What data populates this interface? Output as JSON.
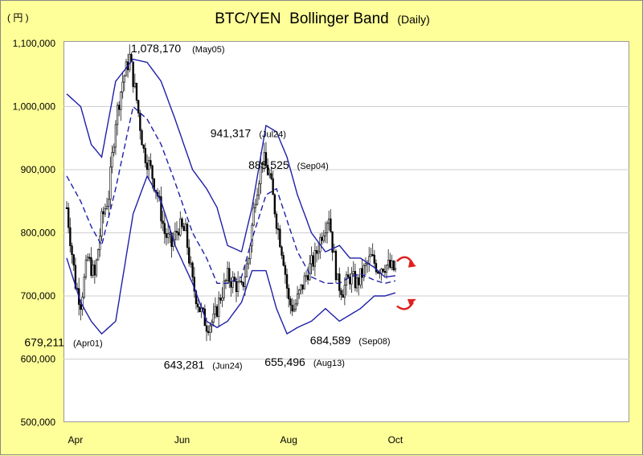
{
  "chart_data": {
    "type": "candlestick",
    "title": "BTC/YEN",
    "title_main": "Bollinger Band",
    "title_sub": "(Daily)",
    "unit_label": "( 円 )",
    "ylim": [
      500000,
      1100000
    ],
    "yticks": [
      {
        "value": 500000,
        "label": "500,000"
      },
      {
        "value": 600000,
        "label": "600,000"
      },
      {
        "value": 700000,
        "label": "700,000"
      },
      {
        "value": 800000,
        "label": "800,000"
      },
      {
        "value": 900000,
        "label": "900,000"
      },
      {
        "value": 1000000,
        "label": "1,000,000"
      },
      {
        "value": 1100000,
        "label": "1,100,000"
      }
    ],
    "day_range": [
      0,
      240
    ],
    "xticks": [
      {
        "day": 5,
        "label": "Apr"
      },
      {
        "day": 66,
        "label": "Jun"
      },
      {
        "day": 127,
        "label": "Aug"
      },
      {
        "day": 188,
        "label": "Oct"
      }
    ],
    "colors": {
      "band": "#1f1fa8",
      "up": "#ffffff",
      "down": "#000000",
      "grid": "#cfcfcf",
      "arrow": "#e02020"
    },
    "annotations": [
      {
        "day": 8,
        "value": 679211,
        "label": "679,211",
        "date": "(Apr01)"
      },
      {
        "day": 34,
        "value": 1078170,
        "label": "1,078,170",
        "date": "(May05)"
      },
      {
        "day": 107,
        "value": 941317,
        "label": "941,317",
        "date": "(Jul24)"
      },
      {
        "day": 84,
        "value": 643281,
        "label": "643,281",
        "date": "(Jun24)"
      },
      {
        "day": 127,
        "value": 655496,
        "label": "655,496",
        "date": "(Aug13)"
      },
      {
        "day": 149,
        "value": 883525,
        "label": "883,525",
        "date": "(Sep04)"
      },
      {
        "day": 153,
        "value": 684589,
        "label": "684,589",
        "date": "(Sep08)"
      }
    ],
    "band_keys": [
      [
        0,
        1020000,
        890000,
        760000
      ],
      [
        8,
        1000000,
        850000,
        690000
      ],
      [
        14,
        940000,
        810000,
        660000
      ],
      [
        20,
        920000,
        780000,
        640000
      ],
      [
        28,
        1040000,
        870000,
        660000
      ],
      [
        38,
        1075000,
        1000000,
        830000
      ],
      [
        46,
        1070000,
        980000,
        890000
      ],
      [
        54,
        1040000,
        940000,
        850000
      ],
      [
        62,
        980000,
        880000,
        780000
      ],
      [
        72,
        900000,
        800000,
        720000
      ],
      [
        80,
        870000,
        760000,
        660000
      ],
      [
        86,
        840000,
        720000,
        650000
      ],
      [
        92,
        780000,
        720000,
        660000
      ],
      [
        100,
        770000,
        730000,
        690000
      ],
      [
        106,
        840000,
        790000,
        740000
      ],
      [
        114,
        970000,
        860000,
        740000
      ],
      [
        120,
        960000,
        870000,
        680000
      ],
      [
        126,
        920000,
        820000,
        640000
      ],
      [
        132,
        860000,
        770000,
        650000
      ],
      [
        140,
        800000,
        730000,
        660000
      ],
      [
        148,
        770000,
        720000,
        680000
      ],
      [
        156,
        780000,
        720000,
        660000
      ],
      [
        162,
        760000,
        730000,
        670000
      ],
      [
        168,
        760000,
        735000,
        680000
      ],
      [
        176,
        745000,
        725000,
        700000
      ],
      [
        182,
        730000,
        720000,
        700000
      ],
      [
        188,
        732000,
        724000,
        705000
      ]
    ],
    "price_keys": [
      [
        0,
        840000
      ],
      [
        5,
        720000
      ],
      [
        8,
        690000
      ],
      [
        12,
        760000
      ],
      [
        16,
        730000
      ],
      [
        20,
        820000
      ],
      [
        24,
        860000
      ],
      [
        28,
        980000
      ],
      [
        32,
        1040000
      ],
      [
        36,
        1078000
      ],
      [
        40,
        1010000
      ],
      [
        44,
        930000
      ],
      [
        48,
        900000
      ],
      [
        52,
        860000
      ],
      [
        56,
        800000
      ],
      [
        60,
        780000
      ],
      [
        64,
        810000
      ],
      [
        68,
        800000
      ],
      [
        72,
        720000
      ],
      [
        76,
        680000
      ],
      [
        80,
        655000
      ],
      [
        84,
        660000
      ],
      [
        88,
        700000
      ],
      [
        92,
        730000
      ],
      [
        96,
        720000
      ],
      [
        100,
        710000
      ],
      [
        104,
        760000
      ],
      [
        108,
        860000
      ],
      [
        112,
        920000
      ],
      [
        116,
        890000
      ],
      [
        120,
        820000
      ],
      [
        124,
        760000
      ],
      [
        127,
        690000
      ],
      [
        130,
        680000
      ],
      [
        134,
        710000
      ],
      [
        138,
        740000
      ],
      [
        142,
        760000
      ],
      [
        146,
        800000
      ],
      [
        150,
        830000
      ],
      [
        152,
        780000
      ],
      [
        155,
        720000
      ],
      [
        158,
        710000
      ],
      [
        162,
        730000
      ],
      [
        166,
        720000
      ],
      [
        170,
        740000
      ],
      [
        174,
        760000
      ],
      [
        178,
        745000
      ],
      [
        182,
        750000
      ],
      [
        188,
        740000
      ]
    ],
    "series": [
      {
        "name": "upper band",
        "style": "solid"
      },
      {
        "name": "middle band",
        "style": "dashed"
      },
      {
        "name": "lower band",
        "style": "solid"
      }
    ]
  }
}
